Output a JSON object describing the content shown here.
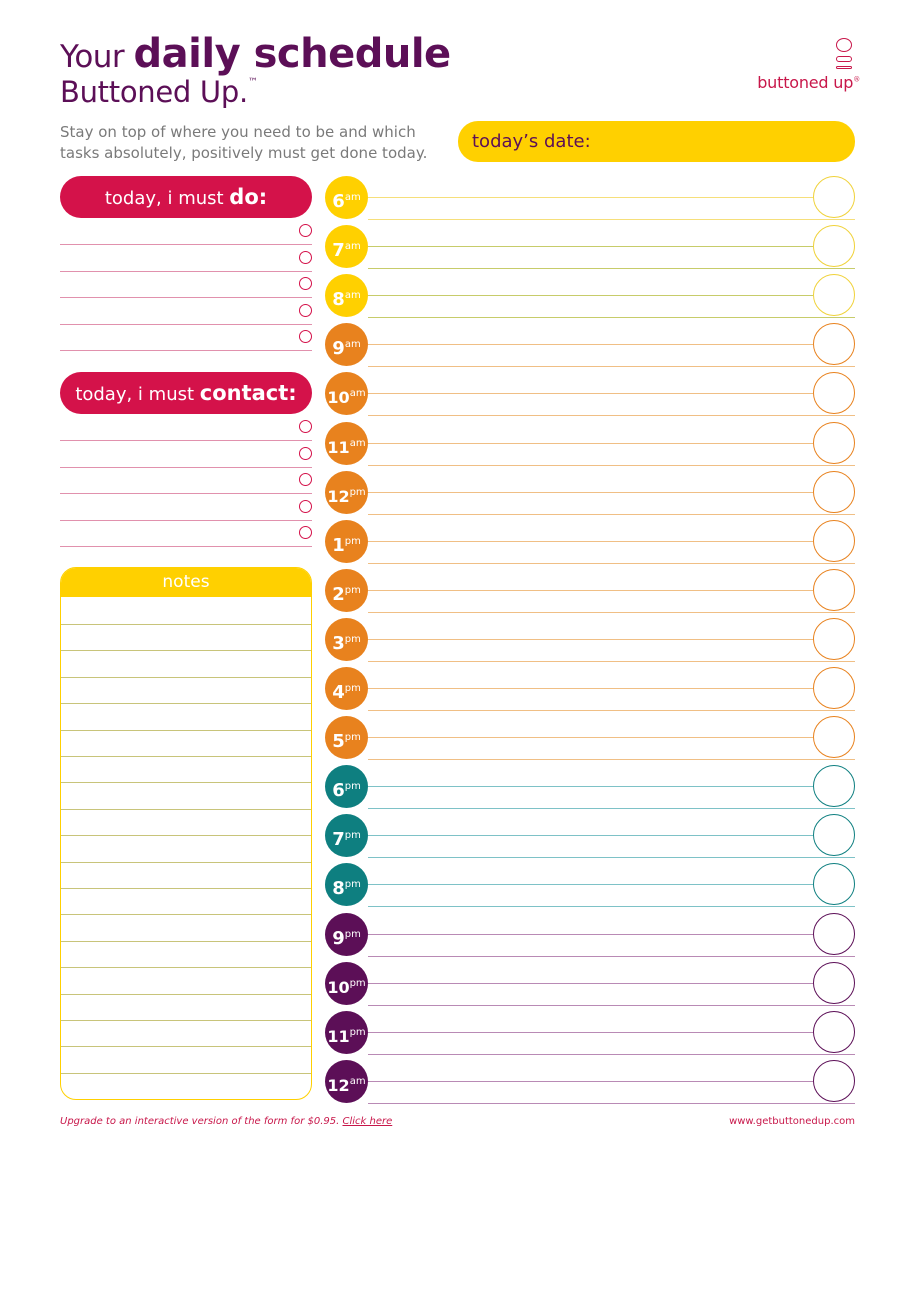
{
  "header": {
    "title_your": "Your",
    "title_main": "daily schedule",
    "title_line2": "Buttoned Up.",
    "title_tm": "™",
    "subtitle": "Stay on top of where you need to be and which tasks absolutely, positively must get done today.",
    "date_label": "today’s date:"
  },
  "logo": {
    "name": "buttoned up",
    "reg": "®"
  },
  "todo": {
    "label_prefix": "today, i must ",
    "label_strong": "do:"
  },
  "contact": {
    "label_prefix": "today, i must ",
    "label_strong": "contact:"
  },
  "notes": {
    "label": "notes"
  },
  "schedule": [
    {
      "hour": "6",
      "suffix": "am",
      "color": "#ffd000",
      "line": "#f6df7a"
    },
    {
      "hour": "7",
      "suffix": "am",
      "color": "#ffd000",
      "line": "#c7cc6a"
    },
    {
      "hour": "8",
      "suffix": "am",
      "color": "#ffd000",
      "line": "#c7cc6a"
    },
    {
      "hour": "9",
      "suffix": "am",
      "color": "#e8821e",
      "line": "#f0bf85"
    },
    {
      "hour": "10",
      "suffix": "am",
      "color": "#e8821e",
      "line": "#f0bf85"
    },
    {
      "hour": "11",
      "suffix": "am",
      "color": "#e8821e",
      "line": "#f0bf85"
    },
    {
      "hour": "12",
      "suffix": "pm",
      "color": "#e8821e",
      "line": "#f0bf85"
    },
    {
      "hour": "1",
      "suffix": "pm",
      "color": "#e8821e",
      "line": "#f0bf85"
    },
    {
      "hour": "2",
      "suffix": "pm",
      "color": "#e8821e",
      "line": "#f0bf85"
    },
    {
      "hour": "3",
      "suffix": "pm",
      "color": "#e8821e",
      "line": "#f0bf85"
    },
    {
      "hour": "4",
      "suffix": "pm",
      "color": "#e8821e",
      "line": "#f0bf85"
    },
    {
      "hour": "5",
      "suffix": "pm",
      "color": "#e8821e",
      "line": "#f0bf85"
    },
    {
      "hour": "6",
      "suffix": "pm",
      "color": "#0e7f80",
      "line": "#7ec2c7"
    },
    {
      "hour": "7",
      "suffix": "pm",
      "color": "#0e7f80",
      "line": "#7ec2c7"
    },
    {
      "hour": "8",
      "suffix": "pm",
      "color": "#0e7f80",
      "line": "#7ec2c7"
    },
    {
      "hour": "9",
      "suffix": "pm",
      "color": "#5c0f57",
      "line": "#b98ab5"
    },
    {
      "hour": "10",
      "suffix": "pm",
      "color": "#5c0f57",
      "line": "#b98ab5"
    },
    {
      "hour": "11",
      "suffix": "pm",
      "color": "#5c0f57",
      "line": "#b98ab5"
    },
    {
      "hour": "12",
      "suffix": "am",
      "color": "#5c0f57",
      "line": "#b98ab5"
    }
  ],
  "footer": {
    "upgrade_text": "Upgrade to an interactive version of the form for $0.95.",
    "link_text": "Click here",
    "website": "www.getbuttonedup.com"
  },
  "colors": {
    "purple": "#5c0f57",
    "magenta": "#d4124a",
    "yellow": "#ffd000",
    "orange": "#e8821e",
    "teal": "#0e7f80"
  }
}
